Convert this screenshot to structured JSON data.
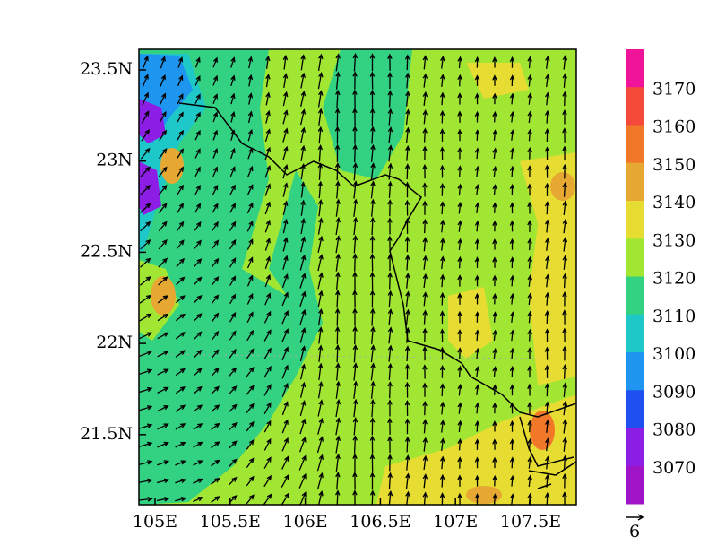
{
  "map": {
    "lat_labels": [
      "23.5N",
      "23N",
      "22.5N",
      "22N",
      "21.5N"
    ],
    "lon_labels": [
      "105E",
      "105.5E",
      "106E",
      "106.5E",
      "107E",
      "107.5E"
    ],
    "colorbar": {
      "levels": [
        3170,
        3160,
        3150,
        3140,
        3130,
        3120,
        3110,
        3100,
        3090,
        3080,
        3070
      ],
      "colors": [
        "#f0149a",
        "#f54a3a",
        "#f07828",
        "#e6a832",
        "#e6dc32",
        "#a0e632",
        "#32d282",
        "#1ec8c8",
        "#1e96f0",
        "#1e50f0",
        "#8c1ee6",
        "#a014c8"
      ]
    },
    "reference_vector": "6"
  }
}
